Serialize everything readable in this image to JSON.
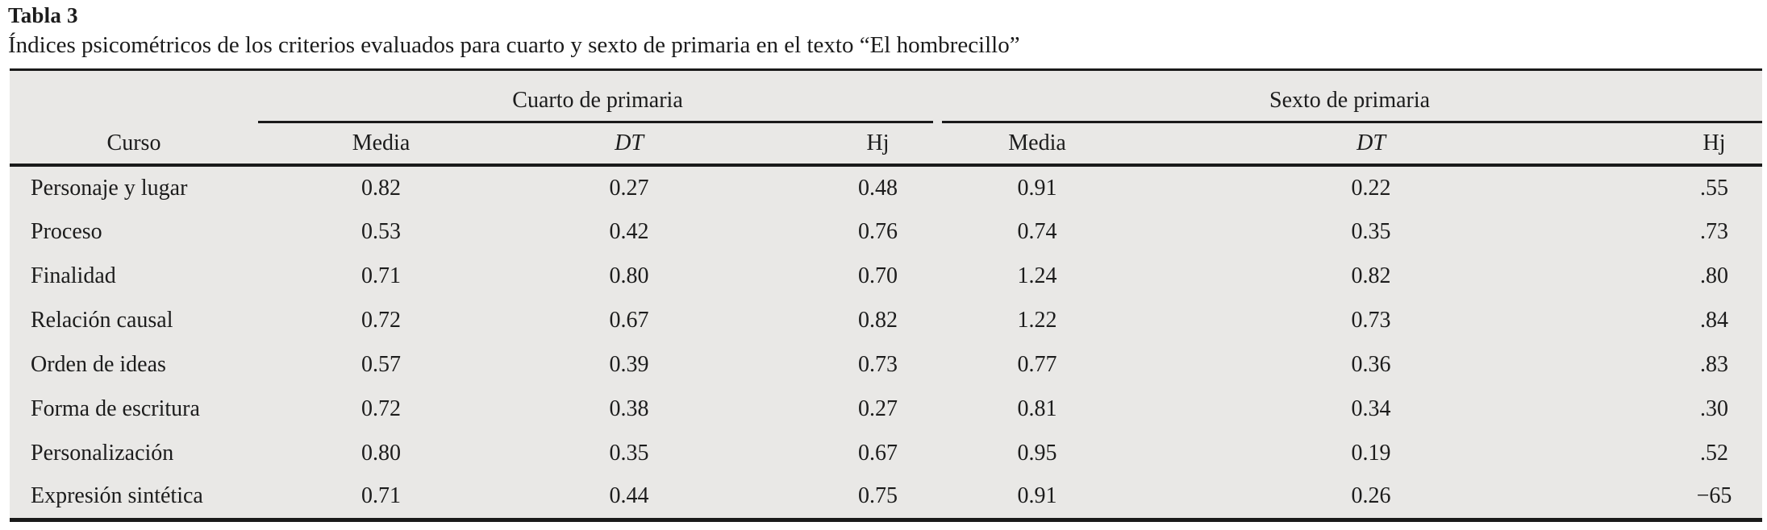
{
  "title": "Tabla 3",
  "caption": "Índices psicométricos de los criterios evaluados para cuarto y sexto de primaria en el texto “El hombrecillo”",
  "table": {
    "row_header": "Curso",
    "groups": [
      {
        "label": "Cuarto de primaria",
        "columns": [
          "Media",
          "DT",
          "Hj"
        ]
      },
      {
        "label": "Sexto de primaria",
        "columns": [
          "Media",
          "DT",
          "Hj"
        ]
      }
    ],
    "rows": [
      {
        "label": "Personaje y lugar",
        "values": [
          "0.82",
          "0.27",
          "0.48",
          "0.91",
          "0.22",
          ".55"
        ]
      },
      {
        "label": "Proceso",
        "values": [
          "0.53",
          "0.42",
          "0.76",
          "0.74",
          "0.35",
          ".73"
        ]
      },
      {
        "label": "Finalidad",
        "values": [
          "0.71",
          "0.80",
          "0.70",
          "1.24",
          "0.82",
          ".80"
        ]
      },
      {
        "label": "Relación causal",
        "values": [
          "0.72",
          "0.67",
          "0.82",
          "1.22",
          "0.73",
          ".84"
        ]
      },
      {
        "label": "Orden de ideas",
        "values": [
          "0.57",
          "0.39",
          "0.73",
          "0.77",
          "0.36",
          ".83"
        ]
      },
      {
        "label": "Forma de escritura",
        "values": [
          "0.72",
          "0.38",
          "0.27",
          "0.81",
          "0.34",
          ".30"
        ]
      },
      {
        "label": "Personalización",
        "values": [
          "0.80",
          "0.35",
          "0.67",
          "0.95",
          "0.19",
          ".52"
        ]
      },
      {
        "label": "Expresión sintética",
        "values": [
          "0.71",
          "0.44",
          "0.75",
          "0.91",
          "0.26",
          "−65"
        ]
      }
    ]
  },
  "colors": {
    "panel_bg": "#e9e8e6",
    "text": "#1c1c1c",
    "rule": "#1a1a1a"
  }
}
